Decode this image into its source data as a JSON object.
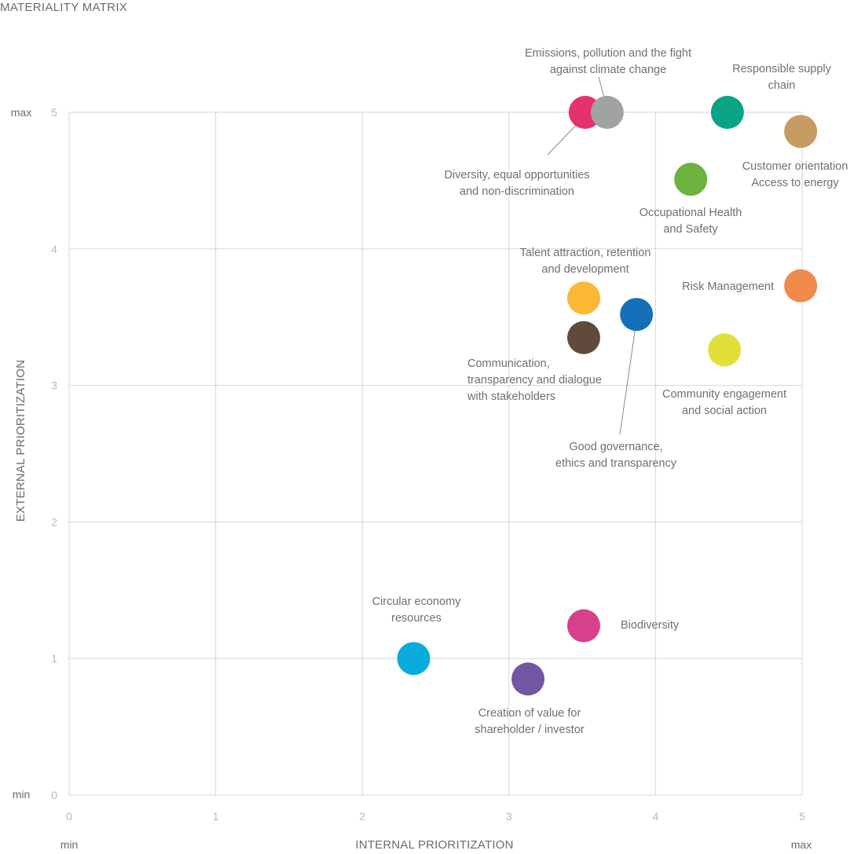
{
  "chart_data": {
    "type": "scatter",
    "title": "MATERIALITY MATRIX",
    "xlabel": "INTERNAL PRIORITIZATION",
    "ylabel": "EXTERNAL PRIORITIZATION",
    "xlim": [
      0,
      5
    ],
    "ylim": [
      0,
      5
    ],
    "x_ticks": [
      "0",
      "1",
      "2",
      "3",
      "4",
      "5"
    ],
    "y_ticks": [
      "0",
      "1",
      "2",
      "3",
      "4",
      "5"
    ],
    "x_min_label": "min",
    "x_max_label": "max",
    "y_min_label": "min",
    "y_max_label": "max",
    "grid": true,
    "points": [
      {
        "name": "diversity",
        "x": 3.52,
        "y": 5.0,
        "color": "#e5316f",
        "label": [
          "Diversity, equal opportunities",
          "and non-discrimination"
        ]
      },
      {
        "name": "emissions",
        "x": 3.67,
        "y": 5.0,
        "color": "#a1a2a4",
        "label": [
          "Emissions, pollution and the fight",
          "against climate change"
        ]
      },
      {
        "name": "supply-chain",
        "x": 4.49,
        "y": 5.0,
        "color": "#0ba386",
        "label": [
          "Responsible supply",
          "chain"
        ]
      },
      {
        "name": "customer-orientation",
        "x": 4.99,
        "y": 4.86,
        "color": "#c69c63",
        "label": [
          "Customer orientation",
          "Access to energy"
        ]
      },
      {
        "name": "health-safety",
        "x": 4.24,
        "y": 4.51,
        "color": "#6db33f",
        "label": [
          "Occupational Health",
          "and Safety"
        ]
      },
      {
        "name": "talent",
        "x": 3.51,
        "y": 3.64,
        "color": "#fbb834",
        "label": [
          "Talent attraction, retention",
          "and development"
        ]
      },
      {
        "name": "risk-management",
        "x": 4.99,
        "y": 3.73,
        "color": "#ef8a4a",
        "label": [
          "Risk Management"
        ]
      },
      {
        "name": "governance",
        "x": 3.87,
        "y": 3.52,
        "color": "#1470b8",
        "label": [
          "Good governance,",
          "ethics and transparency"
        ]
      },
      {
        "name": "communication",
        "x": 3.51,
        "y": 3.35,
        "color": "#5f4a3b",
        "label": [
          "Communication,",
          "transparency and dialogue",
          "with stakeholders"
        ]
      },
      {
        "name": "community",
        "x": 4.47,
        "y": 3.26,
        "color": "#e1e03a",
        "label": [
          "Community engagement",
          "and social action"
        ]
      },
      {
        "name": "biodiversity",
        "x": 3.51,
        "y": 1.24,
        "color": "#d7408c",
        "label": [
          "Biodiversity"
        ]
      },
      {
        "name": "circular-economy",
        "x": 2.35,
        "y": 1.0,
        "color": "#07acdb",
        "label": [
          "Circular economy",
          "resources"
        ]
      },
      {
        "name": "shareholder-value",
        "x": 3.13,
        "y": 0.85,
        "color": "#7257a2",
        "label": [
          "Creation of value for",
          "shareholder / investor"
        ]
      }
    ]
  }
}
